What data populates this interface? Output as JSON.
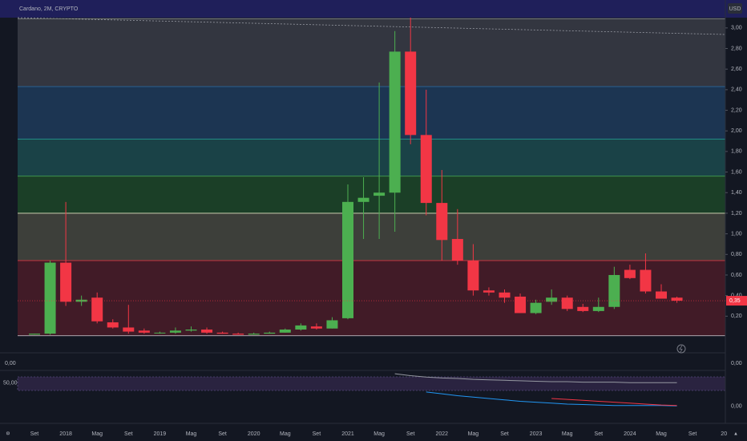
{
  "chart_data": {
    "type": "candlestick",
    "title": "Cardano, 2M, CRYPTO",
    "currency": "USD",
    "categories": [
      "Set",
      null,
      "2018",
      null,
      "Mag",
      null,
      "Set",
      null,
      "2019",
      null,
      "Mag",
      null,
      "Set",
      null,
      "2020",
      null,
      "Mag",
      null,
      "Set",
      null,
      "2021",
      null,
      "Mag",
      null,
      "Set",
      null,
      "2022",
      null,
      "Mag",
      null,
      "Set",
      null,
      "2023",
      null,
      "Mag",
      null,
      "Set",
      null,
      "2024",
      null,
      "Mag",
      null,
      "Set",
      null,
      "20"
    ],
    "open": [
      0.02,
      0.03,
      0.72,
      0.34,
      0.38,
      0.14,
      0.09,
      0.06,
      0.04,
      0.04,
      0.06,
      0.07,
      0.04,
      0.03,
      0.02,
      0.03,
      0.04,
      0.07,
      0.1,
      0.08,
      0.18,
      1.31,
      1.37,
      1.4,
      2.77,
      1.96,
      1.3,
      0.95,
      0.74,
      0.45,
      0.43,
      0.39,
      0.23,
      0.34,
      0.38,
      0.29,
      0.25,
      0.29,
      0.65,
      0.65,
      0.44,
      0.38,
      null,
      null,
      null
    ],
    "high": [
      0.03,
      0.74,
      1.31,
      0.4,
      0.43,
      0.17,
      0.31,
      0.08,
      0.05,
      0.09,
      0.1,
      0.09,
      0.05,
      0.04,
      0.04,
      0.05,
      0.08,
      0.13,
      0.13,
      0.19,
      1.48,
      1.55,
      2.47,
      2.97,
      3.1,
      2.4,
      1.62,
      1.24,
      0.9,
      0.48,
      0.46,
      0.42,
      0.36,
      0.46,
      0.4,
      0.32,
      0.38,
      0.68,
      0.7,
      0.81,
      0.51,
      0.39,
      null,
      null,
      null
    ],
    "low": [
      0.02,
      0.02,
      0.3,
      0.3,
      0.13,
      0.08,
      0.03,
      0.03,
      0.03,
      0.03,
      0.05,
      0.03,
      0.03,
      0.02,
      0.02,
      0.03,
      0.04,
      0.06,
      0.07,
      0.08,
      0.17,
      0.95,
      0.95,
      1.02,
      1.87,
      1.18,
      0.74,
      0.7,
      0.4,
      0.4,
      0.33,
      0.23,
      0.22,
      0.31,
      0.25,
      0.24,
      0.24,
      0.27,
      0.56,
      0.42,
      0.37,
      0.33,
      null,
      null,
      null
    ],
    "close": [
      0.03,
      0.72,
      0.34,
      0.36,
      0.15,
      0.09,
      0.05,
      0.04,
      0.04,
      0.06,
      0.07,
      0.04,
      0.03,
      0.02,
      0.03,
      0.04,
      0.07,
      0.11,
      0.08,
      0.16,
      1.31,
      1.35,
      1.4,
      2.77,
      1.96,
      1.3,
      0.94,
      0.74,
      0.45,
      0.43,
      0.38,
      0.23,
      0.33,
      0.38,
      0.27,
      0.25,
      0.29,
      0.6,
      0.57,
      0.44,
      0.37,
      0.35,
      null,
      null,
      null
    ],
    "up_color": "#4caf50",
    "down_color": "#f23645",
    "ylim": [
      0,
      3.1
    ],
    "yticks": [
      {
        "value": 0.2,
        "label": "0,20"
      },
      {
        "value": 0.4,
        "label": "0,40"
      },
      {
        "value": 0.6,
        "label": "0,60"
      },
      {
        "value": 0.8,
        "label": "0,80"
      },
      {
        "value": 1.0,
        "label": "1,00"
      },
      {
        "value": 1.2,
        "label": "1,20"
      },
      {
        "value": 1.4,
        "label": "1,40"
      },
      {
        "value": 1.6,
        "label": "1,60"
      },
      {
        "value": 1.8,
        "label": "1,80"
      },
      {
        "value": 2.0,
        "label": "2,00"
      },
      {
        "value": 2.2,
        "label": "2,20"
      },
      {
        "value": 2.4,
        "label": "2,40"
      },
      {
        "value": 2.6,
        "label": "2,60"
      },
      {
        "value": 2.8,
        "label": "2,80"
      },
      {
        "value": 3.0,
        "label": "3,00"
      }
    ],
    "levels": [
      3.09,
      2.43,
      1.92,
      1.56,
      1.2,
      0.74,
      0.01
    ],
    "level_colors": [
      "#3a3c45",
      "#1e3b5a",
      "#1c4a4e",
      "#1d4628",
      "#45463e",
      "#4a1c28"
    ],
    "level_line_colors": [
      "#9598a1",
      "#2a6fa8",
      "#26a69a",
      "#4caf50",
      "#e0e0c0",
      "#f23645",
      "#d1d4dc"
    ],
    "last_price": {
      "value": 0.35,
      "label": "0,35"
    },
    "pane2": {
      "yticks": [
        {
          "value": 0,
          "label": "0,00"
        }
      ]
    },
    "indicator": {
      "ylim": [
        -14,
        72
      ],
      "right_ticks": [
        {
          "value": 0,
          "label": "0,00"
        }
      ],
      "left_ticks": [
        {
          "value": 50,
          "label": "50,00"
        }
      ],
      "series": [
        {
          "color": "#9598a1",
          "values": [
            null,
            null,
            null,
            null,
            null,
            null,
            null,
            null,
            null,
            null,
            null,
            null,
            null,
            null,
            null,
            null,
            null,
            null,
            null,
            null,
            null,
            null,
            null,
            70,
            66,
            63,
            61,
            60,
            58,
            57,
            56,
            55,
            54,
            53,
            53,
            52,
            52,
            52,
            51,
            51,
            51,
            51,
            null,
            null,
            null
          ]
        },
        {
          "color": "#2196f3",
          "values": [
            null,
            null,
            null,
            null,
            null,
            null,
            null,
            null,
            null,
            null,
            null,
            null,
            null,
            null,
            null,
            null,
            null,
            null,
            null,
            null,
            null,
            null,
            null,
            null,
            null,
            31,
            27,
            23,
            20,
            17,
            14,
            11,
            9,
            7,
            5,
            4,
            3,
            2,
            2,
            2,
            2,
            1,
            null,
            null,
            null
          ]
        },
        {
          "color": "#f23645",
          "values": [
            null,
            null,
            null,
            null,
            null,
            null,
            null,
            null,
            null,
            null,
            null,
            null,
            null,
            null,
            null,
            null,
            null,
            null,
            null,
            null,
            null,
            null,
            null,
            null,
            null,
            null,
            null,
            null,
            null,
            null,
            null,
            null,
            null,
            17,
            15,
            13,
            11,
            9,
            7,
            5,
            3,
            2,
            null,
            null,
            null
          ]
        }
      ]
    }
  }
}
